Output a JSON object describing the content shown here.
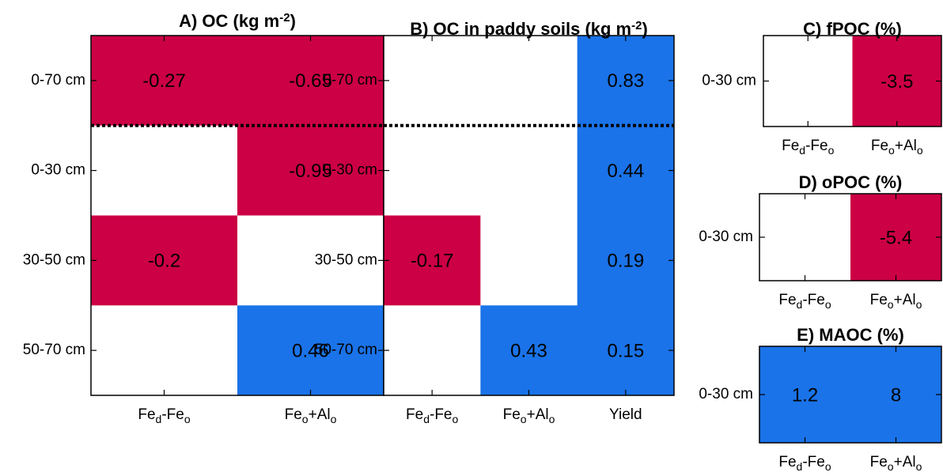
{
  "colors": {
    "negative": "#cc0044",
    "positive": "#1a73e8",
    "empty": "#ffffff"
  },
  "chart_data": [
    {
      "type": "heatmap",
      "title": "A) OC (kg m",
      "title_sup": "-2",
      "title_close": ")",
      "columns": [
        {
          "main": "Fe",
          "sub1": "d",
          "mid": "-Fe",
          "sub2": "o"
        },
        {
          "main": "Fe",
          "sub1": "o",
          "mid": "+Al",
          "sub2": "o"
        }
      ],
      "rows": [
        "0-70 cm",
        "0-30 cm",
        "30-50 cm",
        "50-70 cm"
      ],
      "values": [
        [
          -0.27,
          -0.65
        ],
        [
          null,
          -0.95
        ],
        [
          -0.2,
          null
        ],
        [
          null,
          0.46
        ]
      ],
      "labels": [
        [
          "-0.27",
          "-0.65"
        ],
        [
          "",
          "-0.95"
        ],
        [
          "-0.2",
          ""
        ],
        [
          "",
          "0.46"
        ]
      ],
      "divider_after_row": 0
    },
    {
      "type": "heatmap",
      "title": "B) OC in paddy soils (kg m",
      "title_sup": "-2",
      "title_close": ")",
      "columns": [
        {
          "main": "Fe",
          "sub1": "d",
          "mid": "-Fe",
          "sub2": "o"
        },
        {
          "main": "Fe",
          "sub1": "o",
          "mid": "+Al",
          "sub2": "o"
        },
        {
          "main": "Yield",
          "sub1": "",
          "mid": "",
          "sub2": ""
        }
      ],
      "rows": [
        "0-70 cm",
        "0-30 cm",
        "30-50 cm",
        "50-70 cm"
      ],
      "values": [
        [
          null,
          null,
          0.83
        ],
        [
          null,
          null,
          0.44
        ],
        [
          -0.17,
          null,
          0.19
        ],
        [
          null,
          0.43,
          0.15
        ]
      ],
      "labels": [
        [
          "",
          "",
          "0.83"
        ],
        [
          "",
          "",
          "0.44"
        ],
        [
          "-0.17",
          "",
          "0.19"
        ],
        [
          "",
          "0.43",
          "0.15"
        ]
      ],
      "divider_after_row": 0
    },
    {
      "type": "heatmap",
      "title": "C) fPOC (%)",
      "title_sup": "",
      "title_close": "",
      "columns": [
        {
          "main": "Fe",
          "sub1": "d",
          "mid": "-Fe",
          "sub2": "o"
        },
        {
          "main": "Fe",
          "sub1": "o",
          "mid": "+Al",
          "sub2": "o"
        }
      ],
      "rows": [
        "0-30 cm"
      ],
      "values": [
        [
          null,
          -3.5
        ]
      ],
      "labels": [
        [
          "",
          "-3.5"
        ]
      ]
    },
    {
      "type": "heatmap",
      "title": "D) oPOC (%)",
      "title_sup": "",
      "title_close": "",
      "columns": [
        {
          "main": "Fe",
          "sub1": "d",
          "mid": "-Fe",
          "sub2": "o"
        },
        {
          "main": "Fe",
          "sub1": "o",
          "mid": "+Al",
          "sub2": "o"
        }
      ],
      "rows": [
        "0-30 cm"
      ],
      "values": [
        [
          null,
          -5.4
        ]
      ],
      "labels": [
        [
          "",
          "-5.4"
        ]
      ]
    },
    {
      "type": "heatmap",
      "title": "E) MAOC (%)",
      "title_sup": "",
      "title_close": "",
      "columns": [
        {
          "main": "Fe",
          "sub1": "d",
          "mid": "-Fe",
          "sub2": "o"
        },
        {
          "main": "Fe",
          "sub1": "o",
          "mid": "+Al",
          "sub2": "o"
        }
      ],
      "rows": [
        "0-30 cm"
      ],
      "values": [
        [
          1.2,
          8
        ]
      ],
      "labels": [
        [
          "1.2",
          "8"
        ]
      ]
    }
  ]
}
